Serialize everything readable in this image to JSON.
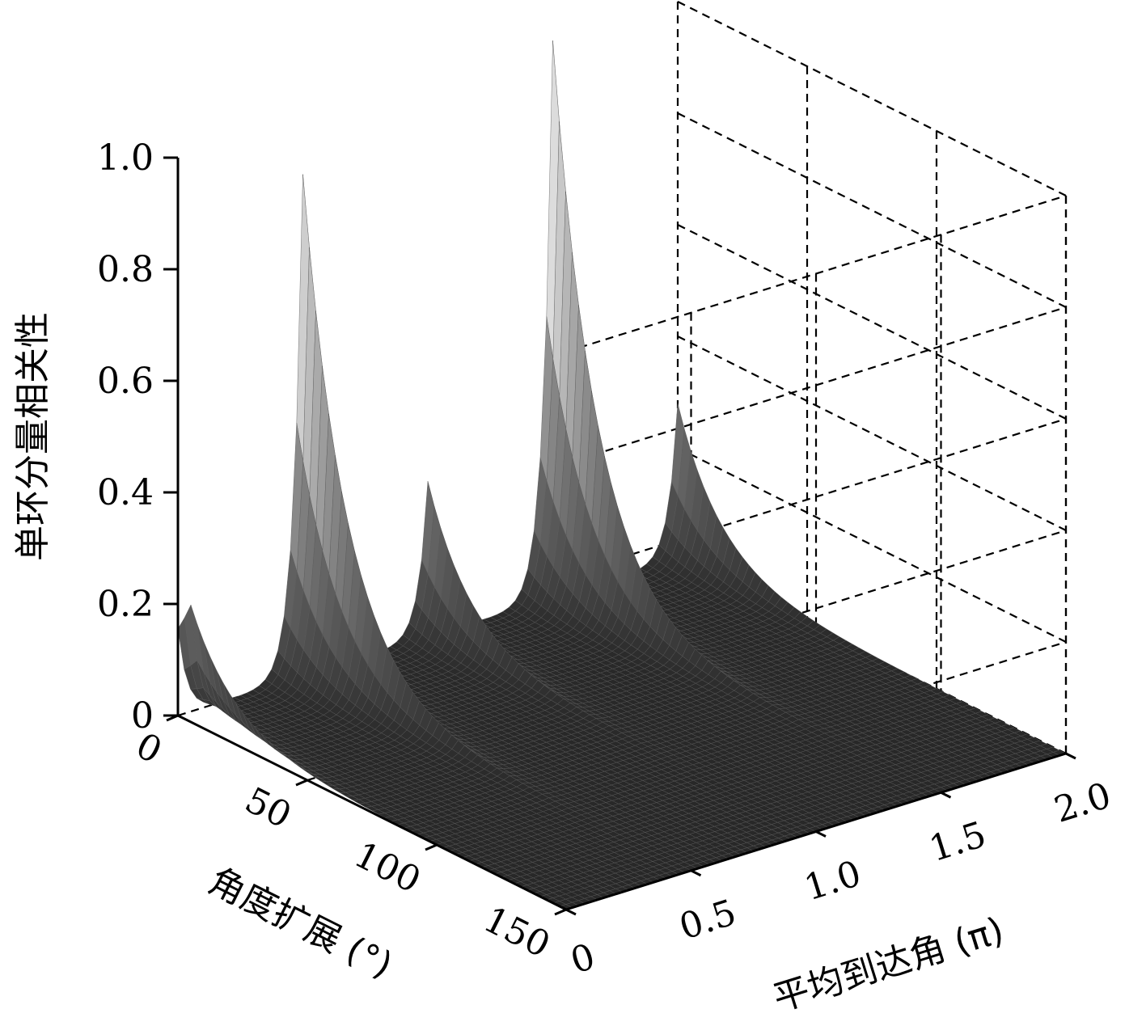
{
  "chart_data": {
    "type": "surface3d",
    "title": "",
    "xlabel": "平均到达角 (π)",
    "ylabel": "角度扩展 (°)",
    "zlabel": "单环分量相关性",
    "x_ticks": [
      "0",
      "0.5",
      "1.0",
      "1.5",
      "2.0"
    ],
    "y_ticks": [
      "0",
      "50",
      "100",
      "150"
    ],
    "z_ticks": [
      "0",
      "0.2",
      "0.4",
      "0.6",
      "0.8",
      "1.0"
    ],
    "x_range": [
      0,
      2
    ],
    "y_range": [
      0,
      150
    ],
    "z_range": [
      0,
      1
    ],
    "grid": true,
    "colormap": "gray",
    "peaks": [
      {
        "x": 0.0,
        "y": 5,
        "z": 0.21
      },
      {
        "x": 0.5,
        "y": 0,
        "z": 0.9
      },
      {
        "x": 1.0,
        "y": 0,
        "z": 0.28
      },
      {
        "x": 1.5,
        "y": 0,
        "z": 1.0
      },
      {
        "x": 2.0,
        "y": 0,
        "z": 0.28
      }
    ]
  }
}
